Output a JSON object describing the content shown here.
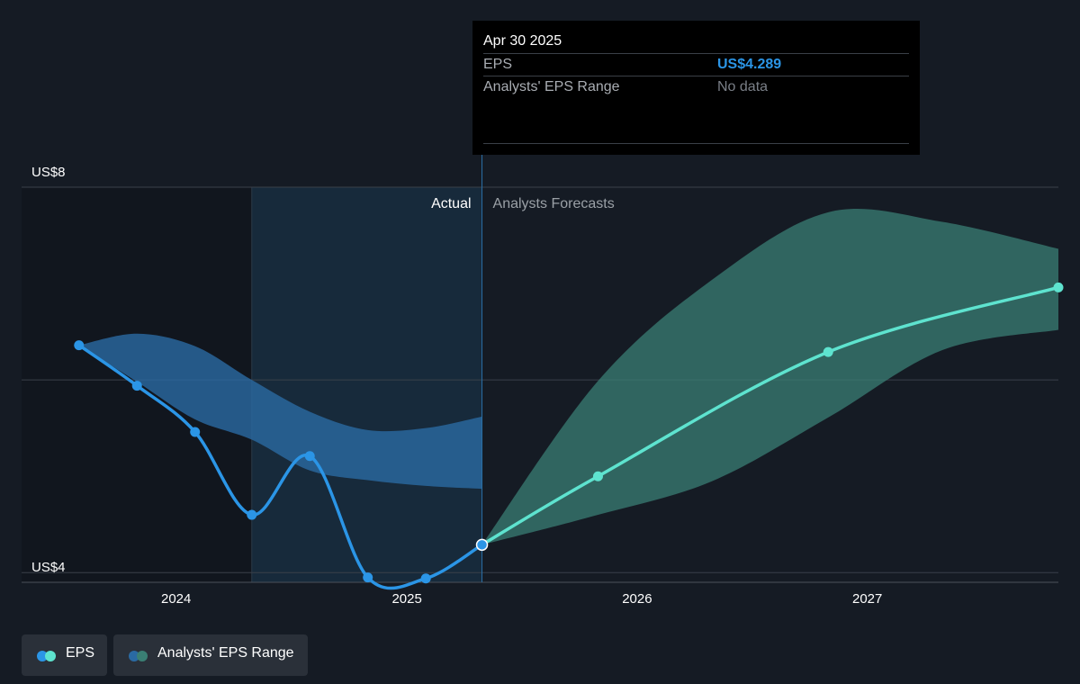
{
  "chart_data": {
    "type": "line",
    "y_axis": {
      "min": 3.9,
      "max": 8.0,
      "tick_labels": [
        "US$8",
        "US$4"
      ],
      "gridlines": [
        8,
        6,
        4
      ]
    },
    "x_axis": {
      "start": "2023-05-01",
      "end": "2027-10-31",
      "tick_labels": [
        "2024",
        "2025",
        "2026",
        "2027"
      ]
    },
    "section_labels": {
      "actual": "Actual",
      "forecast": "Analysts Forecasts"
    },
    "eps_actual": [
      {
        "date": "2023-07-31",
        "value": 6.36
      },
      {
        "date": "2023-10-31",
        "value": 5.94
      },
      {
        "date": "2024-01-31",
        "value": 5.46
      },
      {
        "date": "2024-04-30",
        "value": 4.6
      },
      {
        "date": "2024-07-31",
        "value": 5.21
      },
      {
        "date": "2024-10-31",
        "value": 3.95
      },
      {
        "date": "2025-01-31",
        "value": 3.94
      },
      {
        "date": "2025-04-30",
        "value": 4.289
      }
    ],
    "eps_forecast": [
      {
        "date": "2025-04-30",
        "value": 4.289
      },
      {
        "date": "2025-10-31",
        "value": 5.0
      },
      {
        "date": "2026-10-31",
        "value": 6.29
      },
      {
        "date": "2027-10-31",
        "value": 6.96
      }
    ],
    "range_actual": [
      {
        "date": "2023-07-31",
        "low": 6.36,
        "high": 6.36
      },
      {
        "date": "2023-10-31",
        "low": 5.98,
        "high": 6.48
      },
      {
        "date": "2024-01-31",
        "low": 5.59,
        "high": 6.35
      },
      {
        "date": "2024-04-30",
        "low": 5.38,
        "high": 6.0
      },
      {
        "date": "2024-07-31",
        "low": 5.06,
        "high": 5.67
      },
      {
        "date": "2024-10-31",
        "low": 4.96,
        "high": 5.48
      },
      {
        "date": "2025-01-31",
        "low": 4.9,
        "high": 5.5
      },
      {
        "date": "2025-04-30",
        "low": 4.87,
        "high": 5.62
      }
    ],
    "range_forecast": [
      {
        "date": "2025-04-30",
        "low": 4.289,
        "high": 4.289
      },
      {
        "date": "2025-10-31",
        "low": 4.6,
        "high": 5.99
      },
      {
        "date": "2026-04-30",
        "low": 4.95,
        "high": 7.04
      },
      {
        "date": "2026-10-31",
        "low": 5.61,
        "high": 7.74
      },
      {
        "date": "2027-04-30",
        "low": 6.31,
        "high": 7.64
      },
      {
        "date": "2027-10-31",
        "low": 6.52,
        "high": 7.36
      }
    ],
    "legend_placement": "bottom-left",
    "colors": {
      "background": "#151b24",
      "past_shade": "#11161e",
      "highlight": "#172a3b",
      "grid": "#3a404a",
      "eps_actual": "#2b95e6",
      "eps_forecast": "#5ee3cf",
      "range_actual": "#2a6aa3",
      "range_forecast": "#3a7f74"
    }
  },
  "tooltip": {
    "date": "Apr 30 2025",
    "rows": [
      {
        "label": "EPS",
        "value": "US$4.289",
        "color": "#2b95e6"
      },
      {
        "label": "Analysts' EPS Range",
        "value": "No data",
        "color": "#7a7f87"
      }
    ]
  },
  "legend": {
    "items": [
      {
        "label": "EPS",
        "colors": [
          "#2b95e6",
          "#5ee3cf"
        ]
      },
      {
        "label": "Analysts' EPS Range",
        "colors": [
          "#2a6aa3",
          "#3a7f74"
        ]
      }
    ]
  }
}
